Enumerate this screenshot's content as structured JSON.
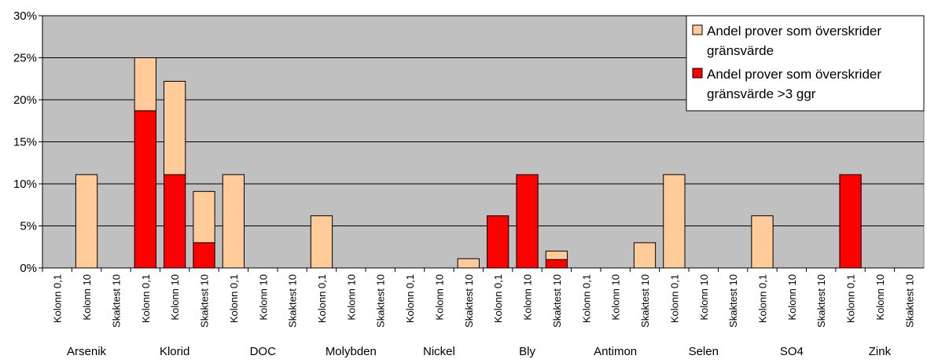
{
  "chart_data": {
    "type": "bar",
    "stacked": true,
    "ylim": [
      0,
      30
    ],
    "y_ticks": [
      0,
      5,
      10,
      15,
      20,
      25,
      30
    ],
    "y_tick_labels": [
      "0%",
      "5%",
      "10%",
      "15%",
      "20%",
      "25%",
      "30%"
    ],
    "grid": true,
    "legend_position": "top-right",
    "groups": [
      "Arsenik",
      "Klorid",
      "DOC",
      "Molybden",
      "Nickel",
      "Bly",
      "Antimon",
      "Selen",
      "SO4",
      "Zink"
    ],
    "subcategories": [
      "Kolonn 0,1",
      "Kolonn 10",
      "Skaktest 10"
    ],
    "series": [
      {
        "name": "Andel prover som överskrider gränsvärde >3 ggr",
        "color": "#ff0000",
        "values": [
          0,
          0,
          0,
          18.7,
          11.1,
          3.0,
          0,
          0,
          0,
          0,
          0,
          0,
          0,
          0,
          0,
          6.2,
          11.1,
          1.0,
          0,
          0,
          0,
          0,
          0,
          0,
          0,
          0,
          0,
          11.1,
          0,
          0
        ]
      },
      {
        "name": "Andel prover som överskrider gränsvärde",
        "color": "#ffcc99",
        "values": [
          0,
          11.1,
          0,
          6.3,
          11.1,
          6.1,
          11.1,
          0,
          0,
          6.2,
          0,
          0,
          0,
          0,
          1.1,
          0,
          0,
          1.0,
          0,
          0,
          3.0,
          11.1,
          0,
          0,
          6.2,
          0,
          0,
          0,
          0,
          0
        ]
      }
    ],
    "legend_entries": [
      {
        "series": 1,
        "lines": [
          "Andel prover som överskrider",
          "gränsvärde"
        ]
      },
      {
        "series": 0,
        "lines": [
          "Andel prover som överskrider",
          "gränsvärde >3 ggr"
        ]
      }
    ],
    "colors": {
      "plot_bg": "#c0c0c0",
      "grid": "#000000",
      "bar_stroke": "#000000"
    }
  }
}
